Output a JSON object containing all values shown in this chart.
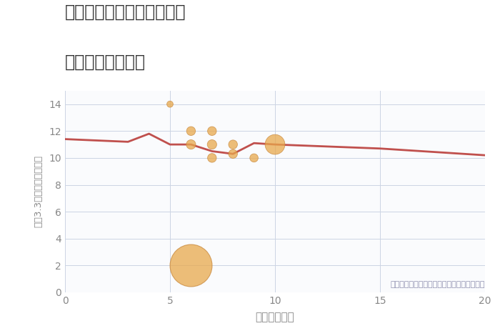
{
  "title_line1": "三重県伊賀市上野田端町の",
  "title_line2": "駅距離別土地価格",
  "xlabel": "駅距離（分）",
  "ylabel": "坪（3.3㎡）単価（万円）",
  "background_color": "#ffffff",
  "plot_background": "#fafbfd",
  "line_color": "#c0504d",
  "line_x": [
    0,
    3,
    4,
    5,
    6,
    7,
    8,
    9,
    10,
    15,
    20
  ],
  "line_y": [
    11.4,
    11.2,
    11.8,
    11.0,
    11.0,
    10.5,
    10.3,
    11.1,
    11.0,
    10.7,
    10.2
  ],
  "scatter_x": [
    5,
    6,
    6,
    7,
    7,
    7,
    8,
    8,
    9,
    10
  ],
  "scatter_y": [
    14.0,
    12.0,
    11.0,
    12.0,
    11.0,
    10.0,
    10.3,
    11.0,
    10.0,
    11.0
  ],
  "scatter_size": [
    40,
    80,
    90,
    80,
    90,
    80,
    80,
    80,
    70,
    400
  ],
  "big_x": 6,
  "big_y": 2.0,
  "big_size": 1800,
  "scatter_color": "#e8a84c",
  "scatter_edge_color": "#c8883c",
  "scatter_alpha": 0.75,
  "annotation": "円の大きさは、取引のあった物件面積を示す",
  "annotation_color": "#9090b0",
  "xlim": [
    0,
    20
  ],
  "ylim": [
    0,
    15
  ],
  "xticks": [
    0,
    5,
    10,
    15,
    20
  ],
  "yticks": [
    0,
    2,
    4,
    6,
    8,
    10,
    12,
    14
  ],
  "grid_color": "#ccd4e4",
  "title_color": "#333333",
  "tick_color": "#888888",
  "title_fontsize": 17,
  "axis_fontsize": 11
}
